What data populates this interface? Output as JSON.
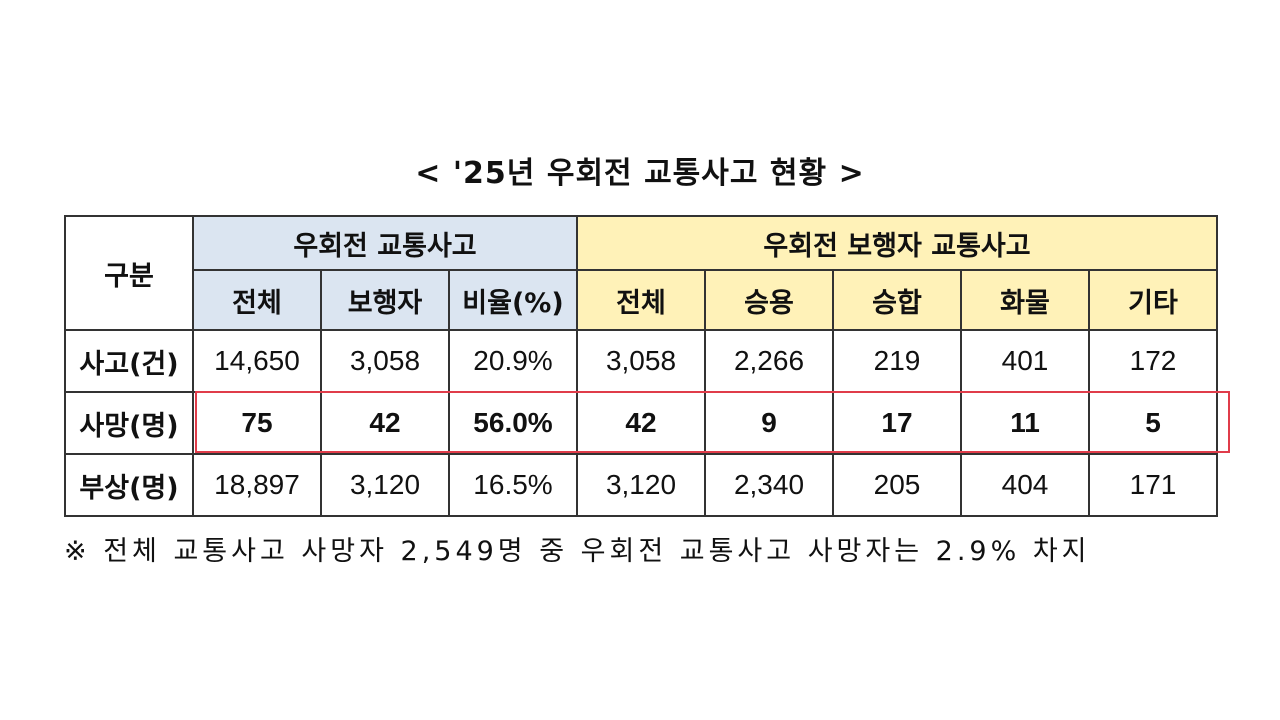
{
  "title": "< '25년 우회전 교통사고 현황 >",
  "table": {
    "category_header": "구분",
    "group1_header": "우회전 교통사고",
    "group2_header": "우회전 보행자 교통사고",
    "subheaders": [
      "전체",
      "보행자",
      "비율(%)",
      "전체",
      "승용",
      "승합",
      "화물",
      "기타"
    ],
    "rows": [
      {
        "label": "사고(건)",
        "values": [
          "14,650",
          "3,058",
          "20.9%",
          "3,058",
          "2,266",
          "219",
          "401",
          "172"
        ]
      },
      {
        "label": "사망(명)",
        "values": [
          "75",
          "42",
          "56.0%",
          "42",
          "9",
          "17",
          "11",
          "5"
        ]
      },
      {
        "label": "부상(명)",
        "values": [
          "18,897",
          "3,120",
          "16.5%",
          "3,120",
          "2,340",
          "205",
          "404",
          "171"
        ]
      }
    ]
  },
  "colors": {
    "group1_bg": "#dbe5f1",
    "group2_bg": "#fff2b8",
    "highlight": "#e03c4a"
  },
  "note": "※ 전체 교통사고 사망자 2,549명 중 우회전 교통사고 사망자는 2.9% 차지"
}
